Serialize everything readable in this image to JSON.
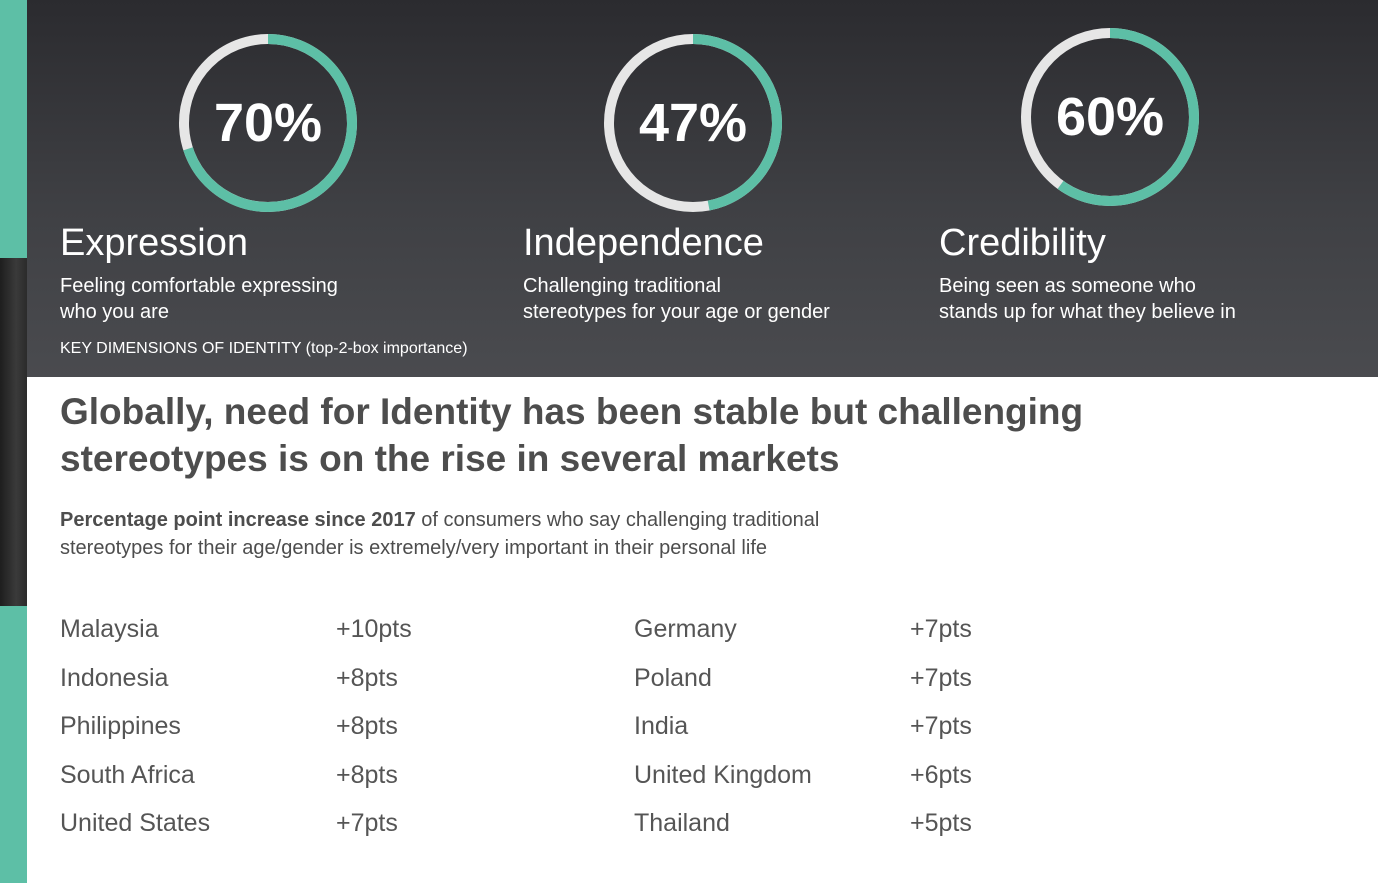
{
  "dimensions": [
    {
      "value": "70%",
      "percent": 70,
      "title": "Expression",
      "desc_line1": "Feeling comfortable expressing",
      "desc_line2": "who you are"
    },
    {
      "value": "47%",
      "percent": 47,
      "title": "Independence",
      "desc_line1": "Challenging traditional",
      "desc_line2": "stereotypes for your age or gender"
    },
    {
      "value": "60%",
      "percent": 60,
      "title": "Credibility",
      "desc_line1": "Being seen as someone who",
      "desc_line2": "stands up for what they believe in"
    }
  ],
  "key_dimensions_label": "KEY DIMENSIONS OF IDENTITY (top-2-box importance)",
  "headline_line1": "Globally, need for Identity has been stable but challenging",
  "headline_line2": "stereotypes is on the rise in several markets",
  "subtitle_bold": "Percentage point increase since 2017",
  "subtitle_rest_line1": " of consumers who say challenging traditional",
  "subtitle_line2": "stereotypes for their age/gender is extremely/very important in their personal life",
  "colors": {
    "accent": "#5dbfa6",
    "ring_track": "#e6e6e6",
    "panel": "#3a3b3f"
  },
  "chart_data": {
    "type": "table",
    "columns": [
      [
        {
          "country": "Malaysia",
          "label": "+10pts",
          "value": 10
        },
        {
          "country": "Indonesia",
          "label": "+8pts",
          "value": 8
        },
        {
          "country": "Philippines",
          "label": "+8pts",
          "value": 8
        },
        {
          "country": "South Africa",
          "label": "+8pts",
          "value": 8
        },
        {
          "country": "United States",
          "label": "+7pts",
          "value": 7
        }
      ],
      [
        {
          "country": "Germany",
          "label": "+7pts",
          "value": 7
        },
        {
          "country": "Poland",
          "label": "+7pts",
          "value": 7
        },
        {
          "country": "India",
          "label": "+7pts",
          "value": 7
        },
        {
          "country": "United Kingdom",
          "label": "+6pts",
          "value": 6
        },
        {
          "country": "Thailand",
          "label": "+5pts",
          "value": 5
        }
      ]
    ]
  }
}
